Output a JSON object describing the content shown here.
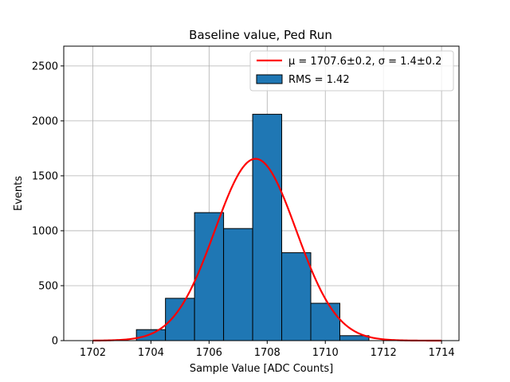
{
  "chart_data": {
    "type": "bar",
    "title": "Baseline value, Ped Run",
    "xlabel": "Sample Value [ADC Counts]",
    "ylabel": "Events",
    "xlim": [
      1701,
      1714.6
    ],
    "ylim": [
      0,
      2680
    ],
    "xticks": [
      1702,
      1704,
      1706,
      1708,
      1710,
      1712,
      1714
    ],
    "yticks": [
      0,
      500,
      1000,
      1500,
      2000,
      2500
    ],
    "grid": true,
    "legend_position": "top-right",
    "histogram": {
      "name": "RMS = 1.42",
      "color": "#1f77b4",
      "edge_color": "#000000",
      "bins": [
        {
          "x0": 1703.5,
          "x1": 1704.5,
          "value": 100
        },
        {
          "x0": 1704.5,
          "x1": 1705.5,
          "value": 385
        },
        {
          "x0": 1705.5,
          "x1": 1706.5,
          "value": 1165
        },
        {
          "x0": 1706.5,
          "x1": 1707.5,
          "value": 1020
        },
        {
          "x0": 1707.5,
          "x1": 1708.5,
          "value": 2060
        },
        {
          "x0": 1708.5,
          "x1": 1709.5,
          "value": 800
        },
        {
          "x0": 1709.5,
          "x1": 1710.5,
          "value": 340
        },
        {
          "x0": 1710.5,
          "x1": 1711.5,
          "value": 45
        }
      ]
    },
    "fit": {
      "name_prefix": "μ = 1707.6±0.2, ",
      "name_suffix": "σ = 1.4±0.2",
      "color": "#ff0000",
      "amplitude": 1655,
      "mu": 1707.6,
      "sigma": 1.4,
      "x_range": [
        1702,
        1714
      ]
    }
  }
}
